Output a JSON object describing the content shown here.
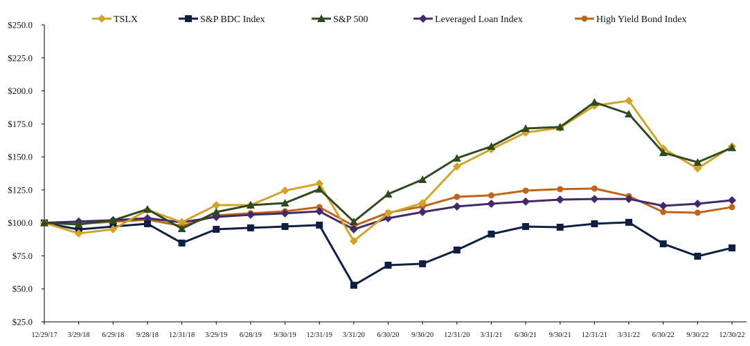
{
  "chart_data": {
    "type": "line",
    "title": "",
    "xlabel": "",
    "ylabel": "",
    "ylim": [
      25,
      250
    ],
    "yticks": [
      25,
      50,
      75,
      100,
      125,
      150,
      175,
      200,
      225,
      250
    ],
    "ytick_labels": [
      "$25.0",
      "$50.0",
      "$75.0",
      "$100.0",
      "$125.0",
      "$150.0",
      "$175.0",
      "$200.0",
      "$225.0",
      "$250.0"
    ],
    "grid": false,
    "legend_position": "top",
    "categories": [
      "12/29/17",
      "3/29/18",
      "6/29/18",
      "9/28/18",
      "12/31/18",
      "3/29/19",
      "6/28/19",
      "9/30/19",
      "12/31/19",
      "3/31/20",
      "6/30/20",
      "9/30/20",
      "12/31/20",
      "3/31/21",
      "6/30/21",
      "9/30/21",
      "12/31/21",
      "3/31/22",
      "6/30/22",
      "9/30/22",
      "12/30/22"
    ],
    "series": [
      {
        "name": "TSLX",
        "color": "#D1A429",
        "marker": "diamond",
        "values": [
          100,
          92.0,
          95.1,
          109.8,
          100.4,
          113.4,
          113.4,
          124.4,
          129.7,
          86.2,
          107.2,
          115.0,
          142.7,
          155.8,
          168.4,
          172.0,
          188.8,
          192.5,
          156.3,
          141.2,
          157.9
        ]
      },
      {
        "name": "S&P BDC Index",
        "color": "#0E1F42",
        "marker": "square",
        "values": [
          100,
          95.0,
          97.2,
          99.3,
          84.7,
          95.1,
          96.2,
          97.2,
          98.3,
          52.7,
          67.9,
          69.0,
          79.4,
          91.5,
          97.2,
          96.7,
          99.3,
          100.4,
          84.1,
          74.7,
          81.0
        ]
      },
      {
        "name": "S&P 500",
        "color": "#2F4A1F",
        "marker": "triangle",
        "values": [
          100,
          98.8,
          101.9,
          110.3,
          95.6,
          108.2,
          113.4,
          115.0,
          125.5,
          100.9,
          121.8,
          132.8,
          149.0,
          157.9,
          171.5,
          172.6,
          191.4,
          182.5,
          153.2,
          145.9,
          156.9
        ]
      },
      {
        "name": "Leveraged Loan Index",
        "color": "#41296C",
        "marker": "diamond",
        "values": [
          100,
          101.0,
          102.0,
          103.5,
          100.4,
          104.5,
          106.1,
          107.2,
          108.7,
          95.1,
          103.5,
          108.2,
          112.4,
          114.5,
          116.1,
          117.6,
          118.1,
          118.1,
          112.9,
          114.5,
          117.1
        ]
      },
      {
        "name": "High Yield Bond Index",
        "color": "#C2631A",
        "marker": "circle",
        "values": [
          100,
          99.4,
          100.8,
          102.4,
          97.7,
          105.6,
          107.2,
          108.7,
          111.9,
          97.7,
          107.7,
          112.4,
          119.7,
          120.8,
          124.4,
          125.5,
          126.0,
          120.2,
          108.2,
          107.7,
          111.9
        ]
      }
    ]
  }
}
